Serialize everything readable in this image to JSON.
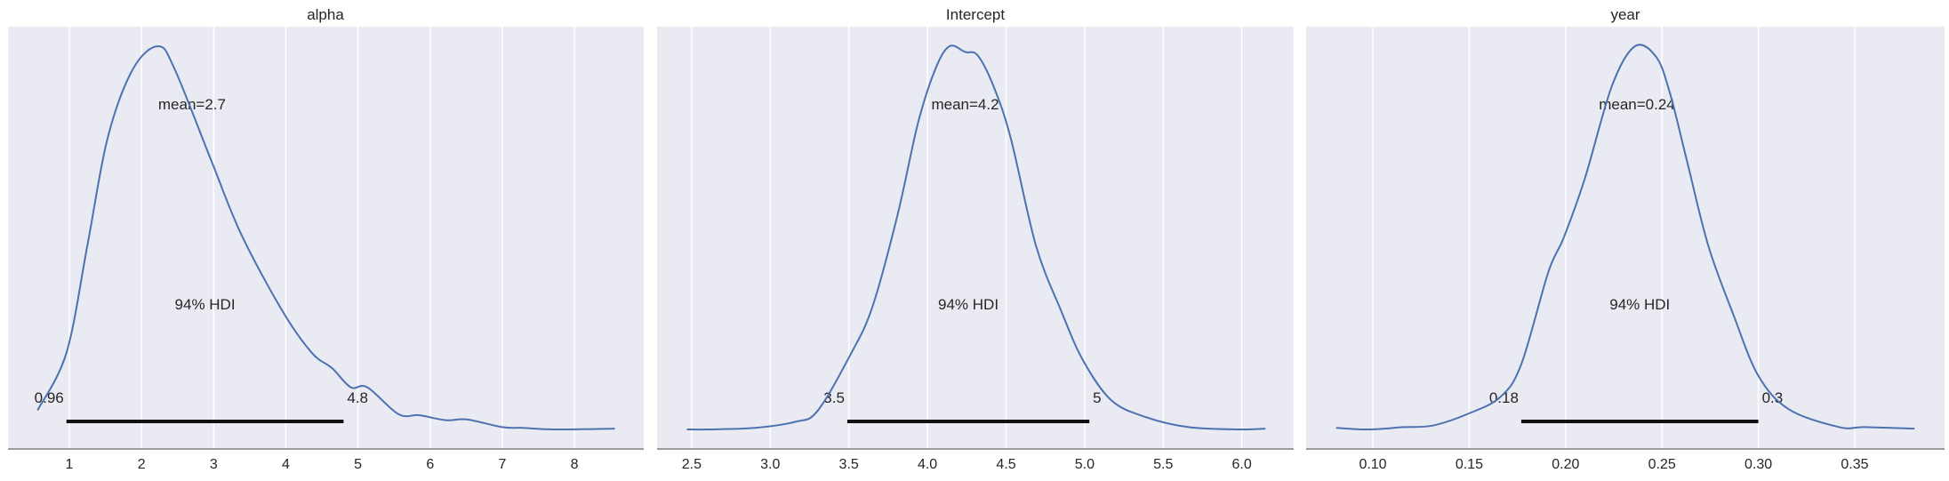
{
  "chart_data": [
    {
      "type": "line",
      "title": "alpha",
      "xlim": [
        0.15,
        8.96
      ],
      "xticks": [
        1,
        2,
        3,
        4,
        5,
        6,
        7,
        8
      ],
      "xtick_labels": [
        "1",
        "2",
        "3",
        "4",
        "5",
        "6",
        "7",
        "8"
      ],
      "grid": true,
      "mean_label": "mean=2.7",
      "mean": 2.7,
      "hdi_label": "94% HDI",
      "hdi": [
        0.96,
        4.8
      ],
      "hdi_low_label": "0.96",
      "hdi_high_label": "4.8",
      "density": {
        "x": [
          0.56,
          0.96,
          1.25,
          1.53,
          1.88,
          2.23,
          2.46,
          2.97,
          3.38,
          3.95,
          4.36,
          4.64,
          4.9,
          5.13,
          5.56,
          5.85,
          6.22,
          6.51,
          7.0,
          7.29,
          7.7,
          8.56
        ],
        "y": [
          0.05,
          0.2,
          0.48,
          0.76,
          0.94,
          1.0,
          0.94,
          0.7,
          0.51,
          0.31,
          0.2,
          0.16,
          0.11,
          0.11,
          0.04,
          0.037,
          0.024,
          0.026,
          0.006,
          0.004,
          0.0,
          0.002
        ]
      }
    },
    {
      "type": "line",
      "title": "Intercept",
      "xlim": [
        2.28,
        6.33
      ],
      "xticks": [
        2.5,
        3.0,
        3.5,
        4.0,
        4.5,
        5.0,
        5.5,
        6.0
      ],
      "xtick_labels": [
        "2.5",
        "3.0",
        "3.5",
        "4.0",
        "4.5",
        "5.0",
        "5.5",
        "6.0"
      ],
      "grid": true,
      "mean_label": "mean=4.2",
      "mean": 4.24,
      "hdi_label": "94% HDI",
      "hdi": [
        3.49,
        5.03
      ],
      "hdi_low_label": "3.5",
      "hdi_high_label": "5",
      "density": {
        "x": [
          2.47,
          2.6,
          2.9,
          3.16,
          3.3,
          3.51,
          3.65,
          3.81,
          3.94,
          4.05,
          4.14,
          4.24,
          4.32,
          4.42,
          4.53,
          4.69,
          4.85,
          4.99,
          5.17,
          5.39,
          5.66,
          5.98,
          6.15
        ],
        "y": [
          0.0,
          0.0,
          0.004,
          0.02,
          0.048,
          0.195,
          0.32,
          0.56,
          0.8,
          0.94,
          1.0,
          0.985,
          0.976,
          0.896,
          0.76,
          0.48,
          0.31,
          0.18,
          0.076,
          0.032,
          0.006,
          0.0,
          0.002
        ]
      }
    },
    {
      "type": "line",
      "title": "year",
      "xlim": [
        0.0654,
        0.3966
      ],
      "xticks": [
        0.1,
        0.15,
        0.2,
        0.25,
        0.3,
        0.35
      ],
      "xtick_labels": [
        "0.10",
        "0.15",
        "0.20",
        "0.25",
        "0.30",
        "0.35"
      ],
      "grid": true,
      "mean_label": "mean=0.24",
      "mean": 0.237,
      "hdi_label": "94% HDI",
      "hdi": [
        0.177,
        0.3
      ],
      "hdi_low_label": "0.18",
      "hdi_high_label": "0.3",
      "density": {
        "x": [
          0.081,
          0.098,
          0.116,
          0.131,
          0.149,
          0.166,
          0.177,
          0.191,
          0.199,
          0.21,
          0.224,
          0.236,
          0.247,
          0.254,
          0.263,
          0.274,
          0.287,
          0.3,
          0.316,
          0.342,
          0.355,
          0.381
        ],
        "y": [
          0.004,
          0.0,
          0.006,
          0.01,
          0.04,
          0.084,
          0.17,
          0.41,
          0.5,
          0.655,
          0.896,
          1.0,
          0.972,
          0.88,
          0.7,
          0.48,
          0.3,
          0.14,
          0.052,
          0.006,
          0.006,
          0.002
        ]
      }
    }
  ],
  "colors": {
    "background": "#eaeaf2",
    "grid": "#ffffff",
    "density_line": "#4c72b0",
    "hdi_bar": "#111111",
    "axis": "#7f7f7f"
  }
}
